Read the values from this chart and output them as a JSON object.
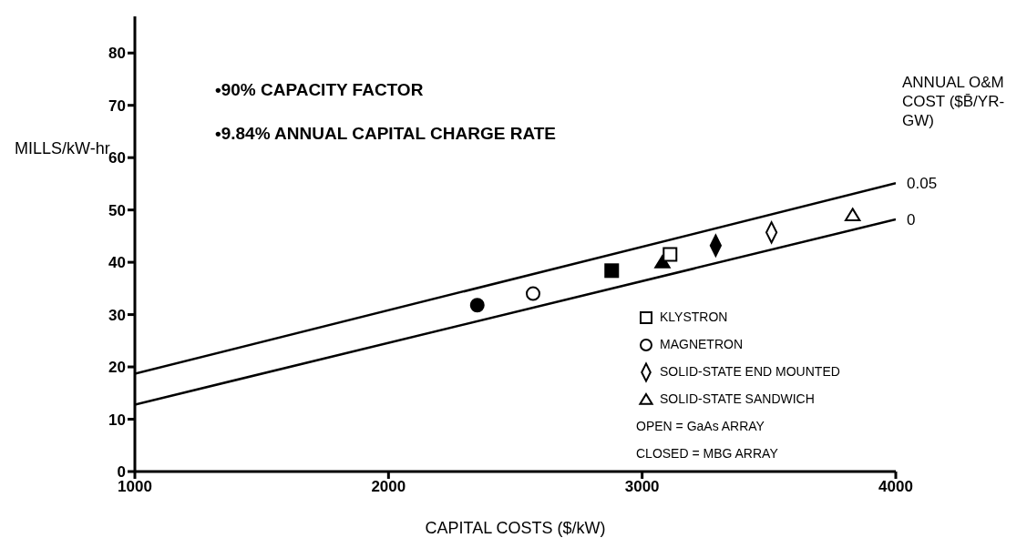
{
  "chart_data": {
    "type": "scatter",
    "xlabel": "CAPITAL COSTS ($/kW)",
    "ylabel": "MILLS/kW-hr",
    "legend_title": "ANNUAL O&M COST ($B̄/YR-GW)",
    "annotations": [
      "•90% CAPACITY FACTOR",
      "•9.84% ANNUAL CAPITAL CHARGE RATE",
      "OPEN = GaAs ARRAY",
      "CLOSED = MBG ARRAY"
    ],
    "xlim": [
      1000,
      4000
    ],
    "xticks": [
      1000,
      2000,
      3000,
      4000
    ],
    "ylim": [
      0,
      87
    ],
    "yticks": [
      0,
      10,
      20,
      30,
      40,
      50,
      60,
      70,
      80
    ],
    "grid": false,
    "legend": "bottom right",
    "series": [
      {
        "type": "line",
        "name": "0.05",
        "color": "#000000",
        "x": [
          1000,
          4000
        ],
        "values": [
          18.7,
          55.1
        ],
        "marker": "none",
        "line_style": "solid"
      },
      {
        "type": "line",
        "name": "0",
        "color": "#000000",
        "x": [
          1000,
          4000
        ],
        "values": [
          12.8,
          48.2
        ],
        "marker": "none",
        "line_style": "solid"
      },
      {
        "name": "KLYSTRON",
        "color": "#000000",
        "marker": "square",
        "x": [
          3110,
          2880
        ],
        "values": [
          41.5,
          38.4
        ],
        "colors": [
          "#ffffff",
          "#000000"
        ]
      },
      {
        "name": "MAGNETRON",
        "color": "#000000",
        "marker": "circle",
        "x": [
          2570,
          2350
        ],
        "values": [
          34.0,
          31.8
        ],
        "colors": [
          "#ffffff",
          "#000000"
        ]
      },
      {
        "name": "SOLID-STATE END MOUNTED",
        "color": "#000000",
        "marker": "diamond",
        "x": [
          3510,
          3290
        ],
        "values": [
          45.7,
          43.2
        ],
        "colors": [
          "#ffffff",
          "#000000"
        ]
      },
      {
        "name": "SOLID-STATE SANDWICH",
        "color": "#000000",
        "marker": "triangle",
        "x": [
          3830,
          3080
        ],
        "values": [
          49.0,
          40.0
        ],
        "colors": [
          "#ffffff",
          "#000000"
        ]
      }
    ]
  }
}
